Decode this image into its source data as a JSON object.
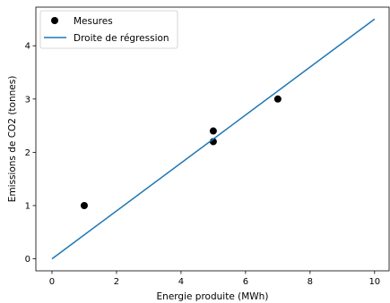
{
  "chart_data": {
    "type": "scatter",
    "xlabel": "Energie produite (MWh)",
    "ylabel": "Emissions de CO2 (tonnes)",
    "xlim": [
      -0.5,
      10.45
    ],
    "ylim": [
      -0.225,
      4.725
    ],
    "xticks": [
      0,
      2,
      4,
      6,
      8,
      10
    ],
    "yticks": [
      0,
      1,
      2,
      3,
      4
    ],
    "grid": false,
    "legend_position": "top-left",
    "series": [
      {
        "name": "Mesures",
        "kind": "scatter",
        "color": "#000000",
        "x": [
          1,
          5,
          5,
          7
        ],
        "y": [
          1.0,
          2.2,
          2.4,
          3.0
        ]
      },
      {
        "name": "Droite de régression",
        "kind": "line",
        "color": "#1f77b4",
        "x": [
          0,
          10
        ],
        "y": [
          0.0,
          4.5
        ]
      }
    ]
  }
}
